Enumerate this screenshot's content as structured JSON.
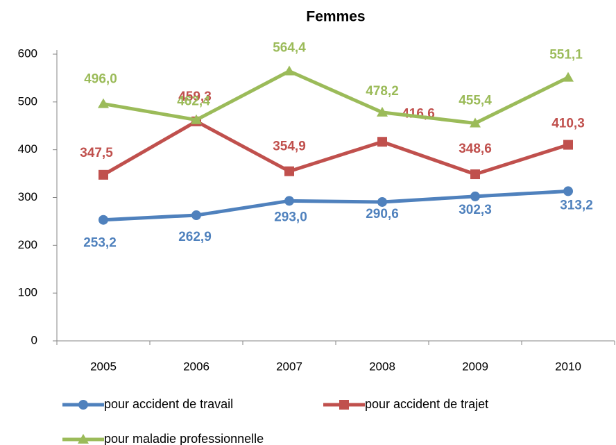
{
  "chart_data": {
    "type": "line",
    "title": "Femmes",
    "categories": [
      "2005",
      "2006",
      "2007",
      "2008",
      "2009",
      "2010"
    ],
    "series": [
      {
        "name": "pour accident de travail",
        "color": "#4f81bd",
        "marker": "circle",
        "values": [
          253.2,
          262.9,
          293.0,
          290.6,
          302.3,
          313.2
        ],
        "value_labels": [
          "253,2",
          "262,9",
          "293,0",
          "290,6",
          "302,3",
          "313,2"
        ]
      },
      {
        "name": "pour accident de trajet",
        "color": "#c0504d",
        "marker": "square",
        "values": [
          347.5,
          459.3,
          354.9,
          416.6,
          348.6,
          410.3
        ],
        "value_labels": [
          "347,5",
          "459,3",
          "354,9",
          "416,6",
          "348,6",
          "410,3"
        ]
      },
      {
        "name": "pour maladie professionnelle",
        "color": "#9bbb59",
        "marker": "triangle",
        "values": [
          496.0,
          462.4,
          564.4,
          478.2,
          455.4,
          551.1
        ],
        "value_labels": [
          "496,0",
          "462,4",
          "564,4",
          "478,2",
          "455,4",
          "551,1"
        ]
      }
    ],
    "ylim": [
      0,
      600
    ],
    "yticks": [
      0,
      100,
      200,
      300,
      400,
      500,
      600
    ],
    "grid": false
  }
}
